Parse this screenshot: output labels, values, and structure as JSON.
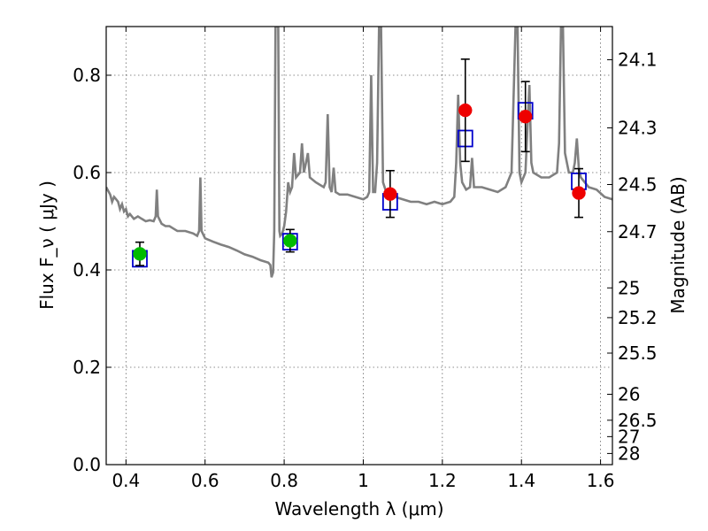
{
  "chart_data": {
    "type": "scatter",
    "xlabel": "Wavelength  λ (μm)",
    "ylabel": "Flux  F_ν  ( μJy )",
    "y2label": "Magnitude (AB)",
    "xlim": [
      0.35,
      1.63
    ],
    "ylim": [
      0.0,
      0.9
    ],
    "grid": true,
    "x_ticks": [
      0.4,
      0.6,
      0.8,
      1.0,
      1.2,
      1.4,
      1.6
    ],
    "x_tick_labels": [
      "0.4",
      "0.6",
      "0.8",
      "1",
      "1.2",
      "1.4",
      "1.6"
    ],
    "y_ticks": [
      0.0,
      0.2,
      0.4,
      0.6,
      0.8
    ],
    "y_tick_labels": [
      "0.0",
      "0.2",
      "0.4",
      "0.6",
      "0.8"
    ],
    "y2_ticks": [
      {
        "mag": 24.1,
        "label": "24.1"
      },
      {
        "mag": 24.3,
        "label": "24.3"
      },
      {
        "mag": 24.5,
        "label": "24.5"
      },
      {
        "mag": 24.7,
        "label": "24.7"
      },
      {
        "mag": 25.0,
        "label": "25"
      },
      {
        "mag": 25.2,
        "label": "25.2"
      },
      {
        "mag": 25.5,
        "label": "25.5"
      },
      {
        "mag": 26.0,
        "label": "26"
      },
      {
        "mag": 26.5,
        "label": "26.5"
      },
      {
        "mag": 27.0,
        "label": "27"
      },
      {
        "mag": 28.0,
        "label": "28"
      }
    ],
    "colors": {
      "spectrum": "#808080",
      "model_box": "#0000cc",
      "green_point": "#00bb00",
      "red_point": "#ee0000",
      "errorbar": "#000000"
    },
    "spectrum": [
      [
        0.35,
        0.57
      ],
      [
        0.36,
        0.555
      ],
      [
        0.365,
        0.54
      ],
      [
        0.37,
        0.55
      ],
      [
        0.375,
        0.545
      ],
      [
        0.38,
        0.54
      ],
      [
        0.385,
        0.525
      ],
      [
        0.39,
        0.535
      ],
      [
        0.395,
        0.52
      ],
      [
        0.4,
        0.525
      ],
      [
        0.405,
        0.51
      ],
      [
        0.41,
        0.515
      ],
      [
        0.42,
        0.505
      ],
      [
        0.43,
        0.51
      ],
      [
        0.44,
        0.505
      ],
      [
        0.45,
        0.5
      ],
      [
        0.46,
        0.502
      ],
      [
        0.47,
        0.5
      ],
      [
        0.475,
        0.51
      ],
      [
        0.478,
        0.565
      ],
      [
        0.481,
        0.51
      ],
      [
        0.49,
        0.495
      ],
      [
        0.5,
        0.49
      ],
      [
        0.51,
        0.49
      ],
      [
        0.52,
        0.485
      ],
      [
        0.53,
        0.48
      ],
      [
        0.55,
        0.48
      ],
      [
        0.57,
        0.475
      ],
      [
        0.58,
        0.47
      ],
      [
        0.585,
        0.48
      ],
      [
        0.588,
        0.59
      ],
      [
        0.591,
        0.48
      ],
      [
        0.6,
        0.465
      ],
      [
        0.62,
        0.458
      ],
      [
        0.64,
        0.452
      ],
      [
        0.66,
        0.447
      ],
      [
        0.68,
        0.44
      ],
      [
        0.7,
        0.432
      ],
      [
        0.72,
        0.427
      ],
      [
        0.74,
        0.42
      ],
      [
        0.76,
        0.415
      ],
      [
        0.765,
        0.41
      ],
      [
        0.768,
        0.385
      ],
      [
        0.772,
        0.395
      ],
      [
        0.775,
        0.48
      ],
      [
        0.778,
        0.9
      ],
      [
        0.785,
        0.9
      ],
      [
        0.788,
        0.48
      ],
      [
        0.79,
        0.47
      ],
      [
        0.795,
        0.475
      ],
      [
        0.8,
        0.49
      ],
      [
        0.805,
        0.52
      ],
      [
        0.81,
        0.58
      ],
      [
        0.815,
        0.56
      ],
      [
        0.82,
        0.57
      ],
      [
        0.825,
        0.64
      ],
      [
        0.83,
        0.59
      ],
      [
        0.84,
        0.6
      ],
      [
        0.845,
        0.66
      ],
      [
        0.85,
        0.6
      ],
      [
        0.855,
        0.62
      ],
      [
        0.86,
        0.64
      ],
      [
        0.865,
        0.59
      ],
      [
        0.88,
        0.58
      ],
      [
        0.9,
        0.57
      ],
      [
        0.905,
        0.58
      ],
      [
        0.91,
        0.72
      ],
      [
        0.915,
        0.57
      ],
      [
        0.92,
        0.56
      ],
      [
        0.925,
        0.61
      ],
      [
        0.93,
        0.56
      ],
      [
        0.94,
        0.555
      ],
      [
        0.96,
        0.555
      ],
      [
        0.98,
        0.55
      ],
      [
        1.0,
        0.545
      ],
      [
        1.01,
        0.55
      ],
      [
        1.015,
        0.56
      ],
      [
        1.02,
        0.8
      ],
      [
        1.025,
        0.56
      ],
      [
        1.03,
        0.56
      ],
      [
        1.035,
        0.62
      ],
      [
        1.04,
        0.9
      ],
      [
        1.045,
        0.9
      ],
      [
        1.05,
        0.58
      ],
      [
        1.06,
        0.555
      ],
      [
        1.08,
        0.55
      ],
      [
        1.1,
        0.545
      ],
      [
        1.12,
        0.54
      ],
      [
        1.14,
        0.54
      ],
      [
        1.16,
        0.535
      ],
      [
        1.18,
        0.54
      ],
      [
        1.2,
        0.535
      ],
      [
        1.22,
        0.54
      ],
      [
        1.23,
        0.55
      ],
      [
        1.235,
        0.62
      ],
      [
        1.24,
        0.76
      ],
      [
        1.245,
        0.62
      ],
      [
        1.25,
        0.58
      ],
      [
        1.26,
        0.565
      ],
      [
        1.27,
        0.57
      ],
      [
        1.275,
        0.63
      ],
      [
        1.28,
        0.57
      ],
      [
        1.3,
        0.57
      ],
      [
        1.32,
        0.565
      ],
      [
        1.34,
        0.56
      ],
      [
        1.36,
        0.57
      ],
      [
        1.375,
        0.6
      ],
      [
        1.385,
        0.9
      ],
      [
        1.39,
        0.9
      ],
      [
        1.395,
        0.6
      ],
      [
        1.4,
        0.58
      ],
      [
        1.41,
        0.6
      ],
      [
        1.42,
        0.78
      ],
      [
        1.425,
        0.62
      ],
      [
        1.43,
        0.6
      ],
      [
        1.45,
        0.59
      ],
      [
        1.47,
        0.59
      ],
      [
        1.49,
        0.6
      ],
      [
        1.495,
        0.66
      ],
      [
        1.5,
        0.9
      ],
      [
        1.505,
        0.9
      ],
      [
        1.51,
        0.64
      ],
      [
        1.52,
        0.6
      ],
      [
        1.53,
        0.6
      ],
      [
        1.535,
        0.62
      ],
      [
        1.54,
        0.67
      ],
      [
        1.545,
        0.61
      ],
      [
        1.55,
        0.59
      ],
      [
        1.57,
        0.57
      ],
      [
        1.59,
        0.565
      ],
      [
        1.61,
        0.55
      ],
      [
        1.63,
        0.545
      ]
    ],
    "model_points": [
      {
        "x": 0.435,
        "y": 0.423
      },
      {
        "x": 0.815,
        "y": 0.458
      },
      {
        "x": 1.068,
        "y": 0.54
      },
      {
        "x": 1.258,
        "y": 0.67
      },
      {
        "x": 1.41,
        "y": 0.727
      },
      {
        "x": 1.545,
        "y": 0.582
      }
    ],
    "observed_points": [
      {
        "x": 0.435,
        "y": 0.433,
        "err": 0.024,
        "color": "green"
      },
      {
        "x": 0.815,
        "y": 0.46,
        "err": 0.023,
        "color": "green"
      },
      {
        "x": 1.068,
        "y": 0.556,
        "err": 0.048,
        "color": "red"
      },
      {
        "x": 1.258,
        "y": 0.728,
        "err": 0.105,
        "color": "red"
      },
      {
        "x": 1.41,
        "y": 0.715,
        "err": 0.072,
        "color": "red"
      },
      {
        "x": 1.545,
        "y": 0.558,
        "err": 0.05,
        "color": "red"
      }
    ]
  }
}
